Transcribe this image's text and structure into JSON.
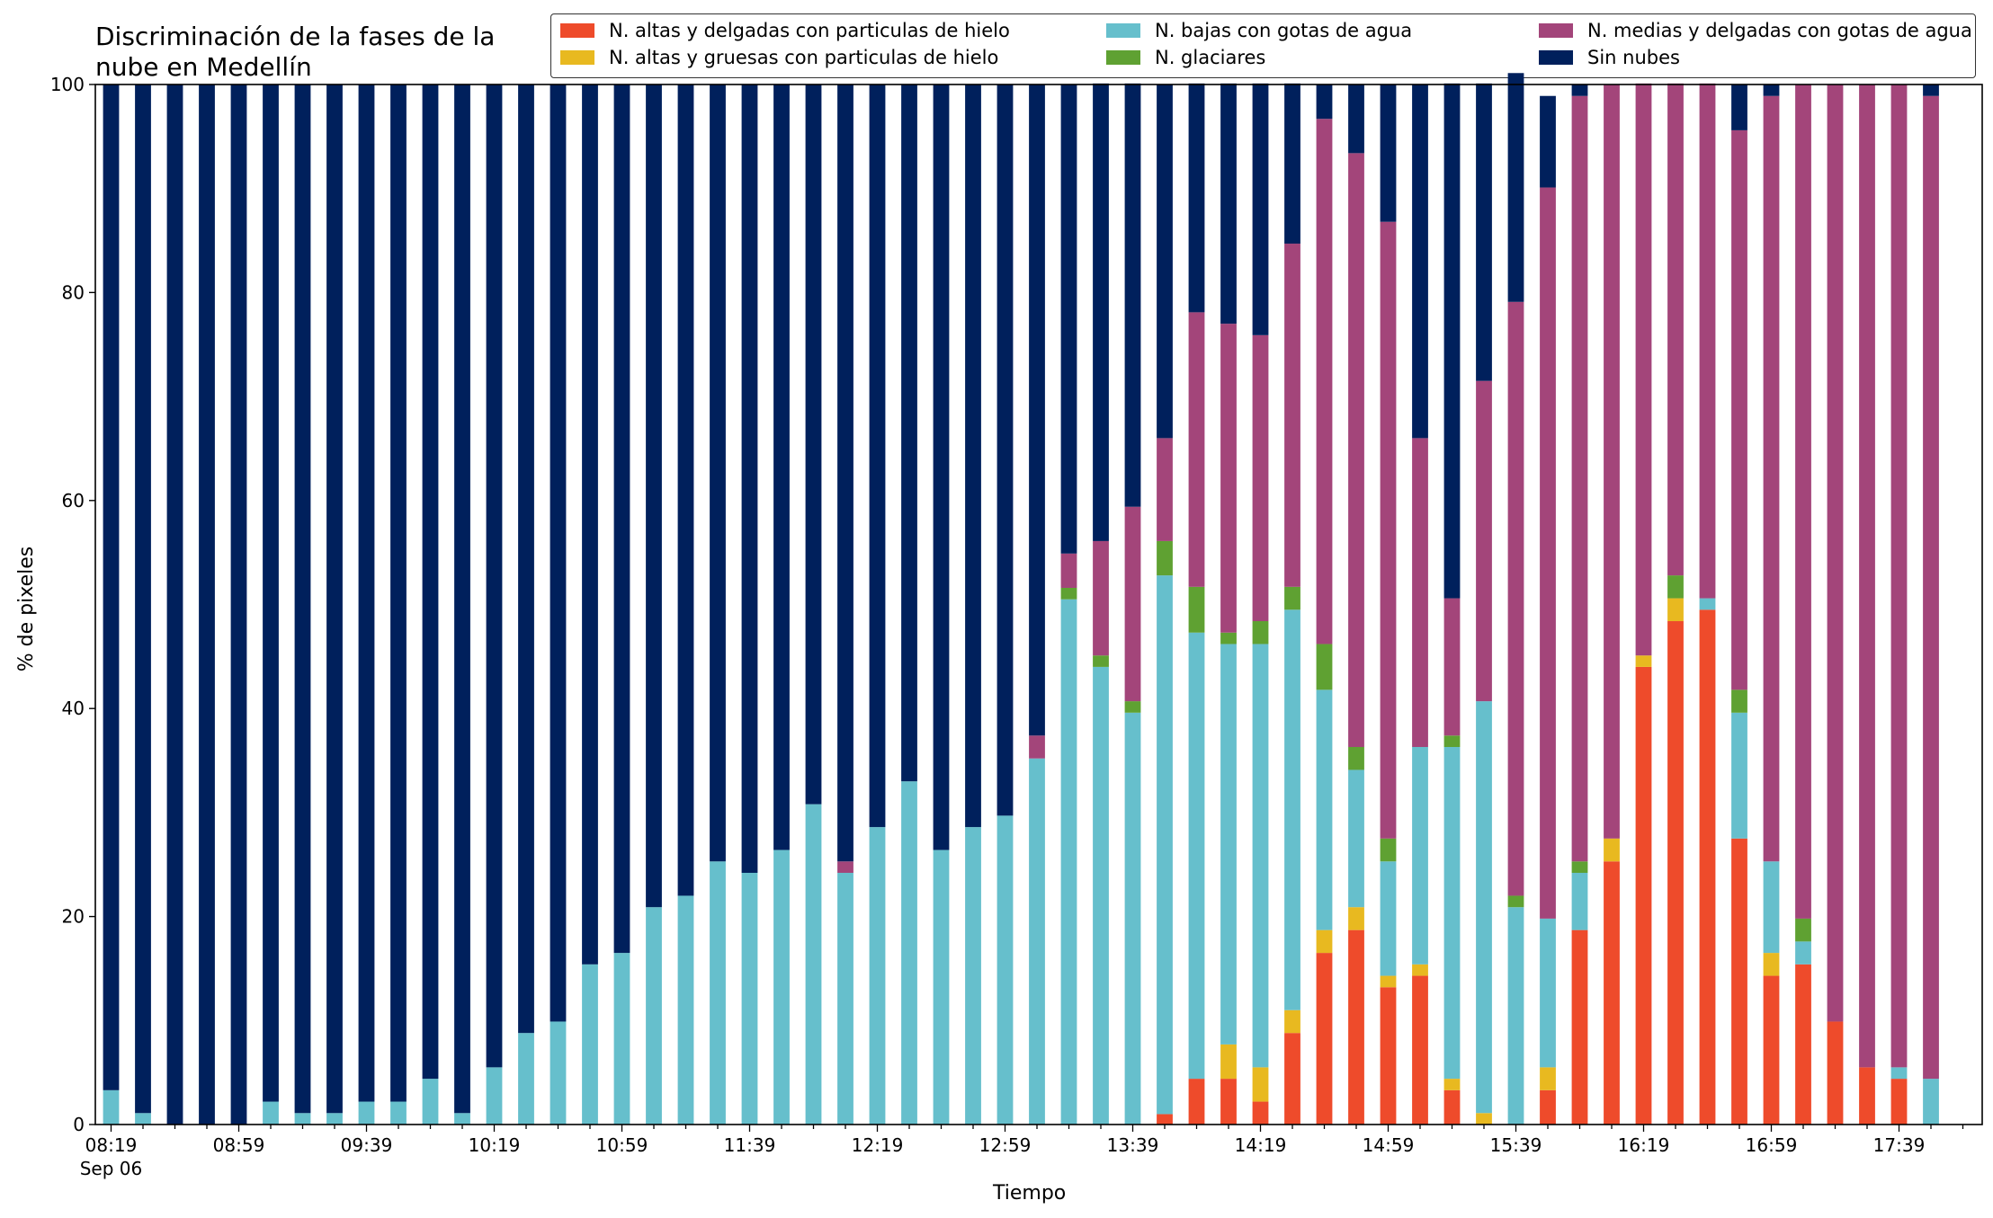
{
  "chart_data": {
    "type": "bar",
    "stacked": true,
    "title_lines": [
      "Discriminación de la fases de la",
      "nube en Medellín"
    ],
    "xlabel": "Tiempo",
    "ylabel": "% de pixeles",
    "ylim": [
      0,
      100
    ],
    "yticks": [
      "0",
      "20",
      "40",
      "60",
      "80",
      "100"
    ],
    "xtick_labels": [
      "08:19",
      "08:59",
      "09:39",
      "10:19",
      "10:59",
      "11:39",
      "12:19",
      "12:59",
      "13:39",
      "14:19",
      "14:59",
      "15:39",
      "16:19",
      "16:59",
      "17:39"
    ],
    "xtick_date": "Sep 06",
    "legend_position": "top-right",
    "grid": false,
    "series": [
      {
        "name": "N. altas y delgadas con particulas de hielo",
        "color": "#ee4b2b",
        "values": [
          0,
          0,
          0,
          0,
          0,
          0,
          0,
          0,
          0,
          0,
          0,
          0,
          0,
          0,
          0,
          0,
          0,
          0,
          0,
          0,
          0,
          0,
          0,
          0,
          0,
          0,
          0,
          0,
          0,
          0,
          0,
          0,
          0,
          1,
          4.4,
          4.4,
          2.2,
          8.8,
          16.5,
          18.7,
          13.2,
          14.3,
          3.3,
          0,
          0,
          3.3,
          18.7,
          25.3,
          44,
          48.4,
          49.5,
          27.5,
          14.3,
          15.4,
          9.9,
          5.5,
          4.4,
          0
        ]
      },
      {
        "name": "N. altas y gruesas con particulas de hielo",
        "color": "#e8b920",
        "values": [
          0,
          0,
          0,
          0,
          0,
          0,
          0,
          0,
          0,
          0,
          0,
          0,
          0,
          0,
          0,
          0,
          0,
          0,
          0,
          0,
          0,
          0,
          0,
          0,
          0,
          0,
          0,
          0,
          0,
          0,
          0,
          0,
          0,
          0,
          0,
          3.3,
          3.3,
          2.2,
          2.2,
          2.2,
          1.1,
          1.1,
          1.1,
          1.1,
          0,
          2.2,
          0,
          2.2,
          1.1,
          2.2,
          0,
          0,
          2.2,
          0,
          0,
          0,
          0,
          0
        ]
      },
      {
        "name": "N. bajas con gotas de agua",
        "color": "#66bfcc",
        "values": [
          3.3,
          1.1,
          0,
          0,
          0,
          2.2,
          1.1,
          1.1,
          2.2,
          2.2,
          4.4,
          1.1,
          5.5,
          8.8,
          9.9,
          15.4,
          16.5,
          20.9,
          22,
          25.3,
          24.2,
          26.4,
          30.8,
          24.2,
          28.6,
          33,
          26.4,
          28.6,
          29.7,
          35.2,
          50.5,
          44,
          39.6,
          51.8,
          42.9,
          38.5,
          40.7,
          38.5,
          23.1,
          13.2,
          11,
          20.9,
          31.9,
          39.6,
          20.9,
          14.3,
          5.5,
          0,
          0,
          0,
          1.1,
          12.1,
          8.8,
          2.2,
          0,
          0,
          1.1,
          4.4
        ]
      },
      {
        "name": "N. glaciares",
        "color": "#5fa132",
        "values": [
          0,
          0,
          0,
          0,
          0,
          0,
          0,
          0,
          0,
          0,
          0,
          0,
          0,
          0,
          0,
          0,
          0,
          0,
          0,
          0,
          0,
          0,
          0,
          0,
          0,
          0,
          0,
          0,
          0,
          0,
          1.1,
          1.1,
          1.1,
          3.3,
          4.4,
          1.1,
          2.2,
          2.2,
          4.4,
          2.2,
          2.2,
          0,
          1.1,
          0,
          1.1,
          0,
          1.1,
          0,
          0,
          2.2,
          0,
          2.2,
          0,
          2.2,
          0,
          0,
          0,
          0
        ]
      },
      {
        "name": "N. medias y delgadas con gotas de agua",
        "color": "#a3457a",
        "values": [
          0,
          0,
          0,
          0,
          0,
          0,
          0,
          0,
          0,
          0,
          0,
          0,
          0,
          0,
          0,
          0,
          0,
          0,
          0,
          0,
          0,
          0,
          0,
          1.1,
          0,
          0,
          0,
          0,
          0,
          2.2,
          3.3,
          11,
          18.7,
          9.9,
          26.4,
          29.7,
          27.5,
          33,
          50.5,
          57.1,
          59.3,
          29.7,
          13.2,
          30.8,
          57.1,
          70.3,
          73.6,
          72.5,
          55,
          47.3,
          49.5,
          53.8,
          73.6,
          80.2,
          90.1,
          94.5,
          94.5,
          94.5
        ]
      },
      {
        "name": "Sin nubes",
        "color": "#00205c",
        "values": [
          96.7,
          98.9,
          100,
          100,
          100,
          97.8,
          98.9,
          98.9,
          97.8,
          97.8,
          95.6,
          98.9,
          94.5,
          91.2,
          90.1,
          84.6,
          83.5,
          79.1,
          78,
          74.7,
          75.8,
          73.6,
          69.2,
          74.7,
          71.4,
          67,
          73.6,
          71.4,
          70.3,
          62.6,
          45.1,
          44,
          40.7,
          34,
          22,
          23.1,
          24.2,
          15.4,
          3.3,
          6.6,
          13.2,
          34,
          49.5,
          28.6,
          22,
          8.8,
          1.1,
          0,
          0,
          0,
          0,
          4.4,
          1.1,
          0,
          0,
          0,
          0,
          1.1
        ]
      }
    ]
  }
}
